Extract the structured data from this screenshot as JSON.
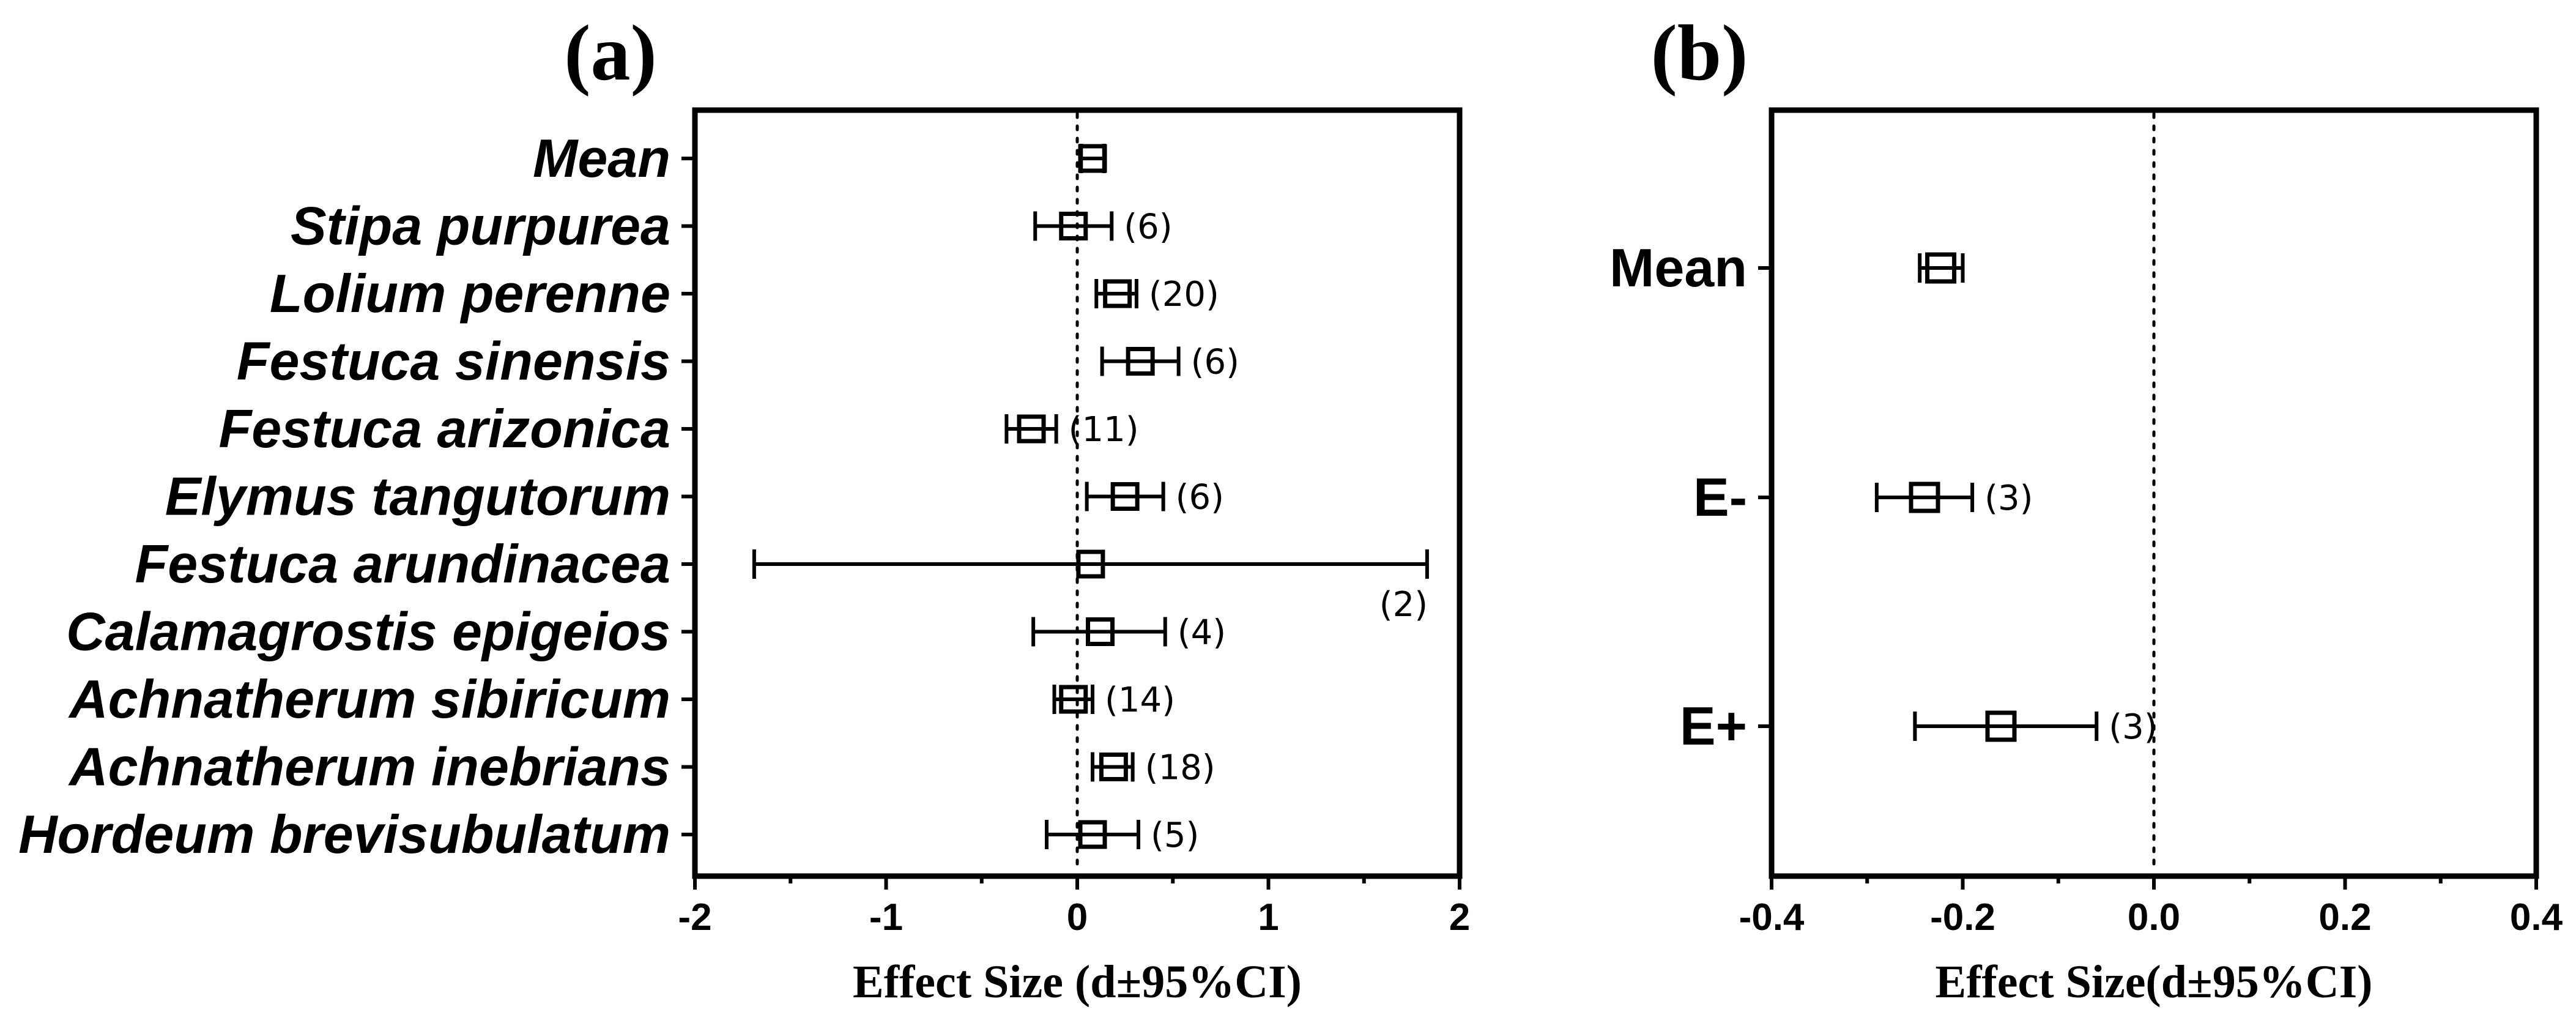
{
  "chart_data": [
    {
      "type": "forest",
      "panel": "(a)",
      "xlabel": "Effect Size (d±95%CI)",
      "xlim": [
        -2,
        2
      ],
      "xticks": [
        -2,
        -1,
        0,
        1,
        2
      ],
      "xtick_labels": [
        "-2",
        "-1",
        "0",
        "1",
        "2"
      ],
      "reference_line": 0,
      "rows": [
        {
          "label": "Mean",
          "estimate": 0.08,
          "lower": 0.02,
          "upper": 0.14,
          "n": ""
        },
        {
          "label": "Stipa purpurea",
          "estimate": -0.02,
          "lower": -0.22,
          "upper": 0.18,
          "n": "(6)"
        },
        {
          "label": "Lolium perenne",
          "estimate": 0.21,
          "lower": 0.1,
          "upper": 0.31,
          "n": "(20)"
        },
        {
          "label": "Festuca sinensis",
          "estimate": 0.33,
          "lower": 0.13,
          "upper": 0.53,
          "n": "(6)"
        },
        {
          "label": "Festuca arizonica",
          "estimate": -0.24,
          "lower": -0.37,
          "upper": -0.11,
          "n": "(11)"
        },
        {
          "label": "Elymus tangutorum",
          "estimate": 0.25,
          "lower": 0.05,
          "upper": 0.45,
          "n": "(6)"
        },
        {
          "label": "Festuca arundinacea",
          "estimate": 0.07,
          "lower": -1.69,
          "upper": 1.83,
          "n": "(2)"
        },
        {
          "label": "Calamagrostis epigeios",
          "estimate": 0.12,
          "lower": -0.23,
          "upper": 0.46,
          "n": "(4)"
        },
        {
          "label": "Achnatherum sibiricum",
          "estimate": -0.02,
          "lower": -0.12,
          "upper": 0.08,
          "n": "(14)"
        },
        {
          "label": "Achnatherum inebrians",
          "estimate": 0.19,
          "lower": 0.08,
          "upper": 0.29,
          "n": "(18)"
        },
        {
          "label": "Hordeum brevisubulatum",
          "estimate": 0.08,
          "lower": -0.16,
          "upper": 0.32,
          "n": "(5)"
        }
      ]
    },
    {
      "type": "forest",
      "panel": "(b)",
      "xlabel": "Effect Size(d±95%CI)",
      "xlim": [
        -0.4,
        0.4
      ],
      "xticks": [
        -0.4,
        -0.2,
        0.0,
        0.2,
        0.4
      ],
      "xtick_labels": [
        "-0.4",
        "-0.2",
        "0.0",
        "0.2",
        "0.4"
      ],
      "reference_line": 0,
      "rows": [
        {
          "label": "Mean",
          "estimate": -0.223,
          "lower": -0.245,
          "upper": -0.2,
          "n": ""
        },
        {
          "label": "E-",
          "estimate": -0.24,
          "lower": -0.29,
          "upper": -0.19,
          "n": "(3)"
        },
        {
          "label": "E+",
          "estimate": -0.16,
          "lower": -0.25,
          "upper": -0.06,
          "n": "(3)"
        }
      ]
    }
  ]
}
